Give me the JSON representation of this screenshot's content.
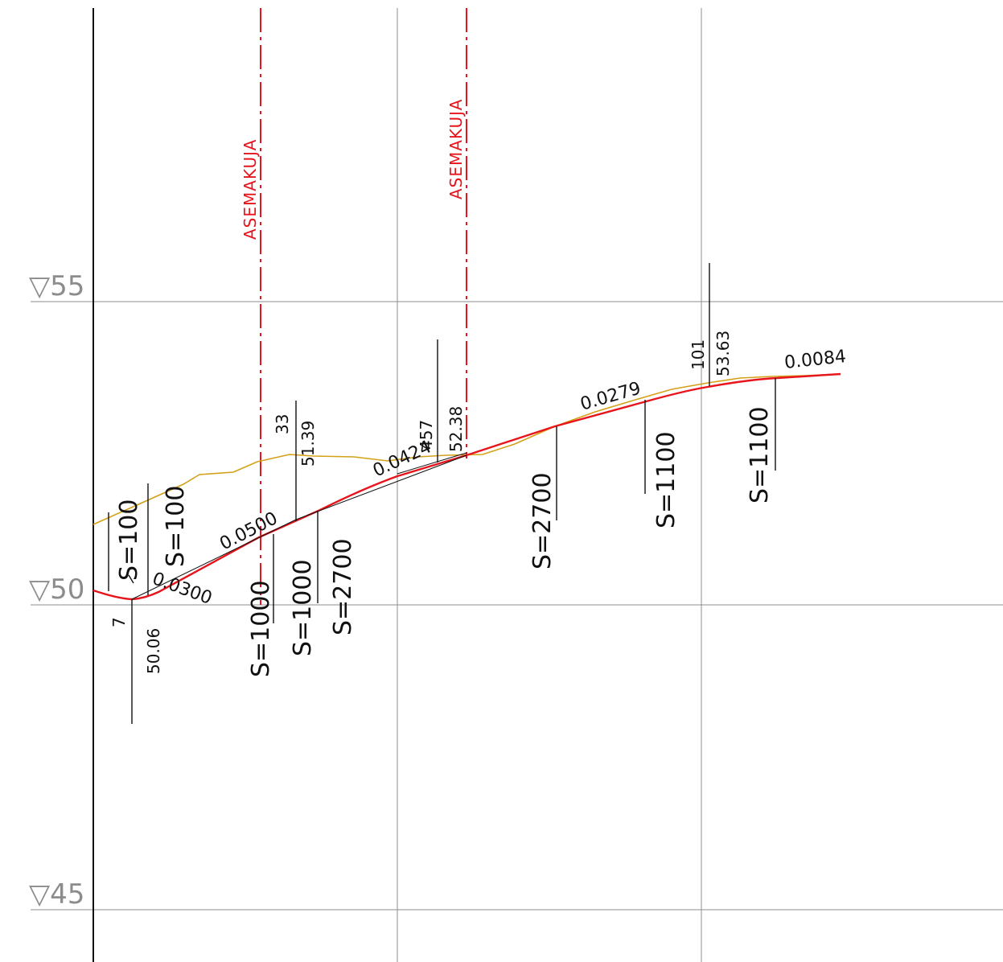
{
  "level_markers": [
    {
      "id": "elev-55",
      "text": "▽55"
    },
    {
      "id": "elev-50",
      "text": "▽50"
    },
    {
      "id": "elev-45",
      "text": "▽45"
    }
  ],
  "plan_lines": [
    {
      "id": "asemakuja-1",
      "label": "ASEMAKUJA"
    },
    {
      "id": "asemakuja-2",
      "label": "ASEMAKUJA"
    }
  ],
  "grades": {
    "g1": "0.0300",
    "g2": "0.0500",
    "g3": "0.0424",
    "g4": "0.0279",
    "g5": "0.0084"
  },
  "vertex_labels": {
    "v1_station": "7",
    "v1_elevation": "50.06",
    "v2_station": "33",
    "v2_elevation": "51.39",
    "v3_station": "457",
    "v3_elevation": "52.38",
    "v4_station": "101",
    "v4_elevation": "53.63"
  },
  "curve_radii": {
    "r1": "S=100",
    "r2": "S=100",
    "r3": "S=1000",
    "r4": "S=1000",
    "r5": "S=2700",
    "r6": "S=2700",
    "r7": "S=1100",
    "r8": "S=1100"
  },
  "colors": {
    "design_line": "#e8141c",
    "ground_line": "#d4a017",
    "grid": "#8c8c8c",
    "ink": "#111111",
    "plan_line": "#e8141c"
  }
}
